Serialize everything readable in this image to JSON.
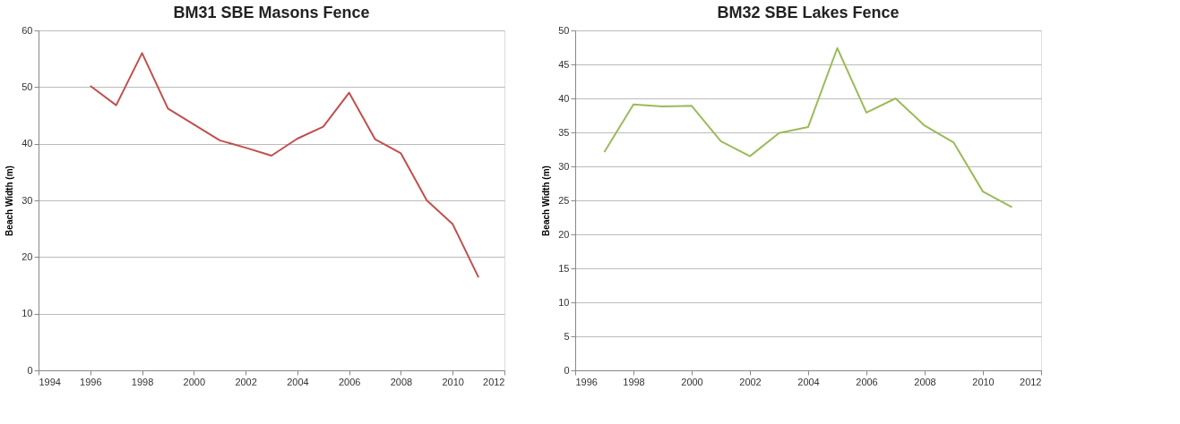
{
  "chart_data": [
    {
      "type": "line",
      "title": "BM31 SBE Masons Fence",
      "ylabel": "Beach Width (m)",
      "x": [
        1996,
        1997,
        1998,
        1999,
        2000,
        2001,
        2002,
        2003,
        2004,
        2005,
        2006,
        2007,
        2008,
        2009,
        2010,
        2011
      ],
      "series": [
        {
          "color": "#c0504d",
          "values": [
            50.2,
            46.8,
            56,
            46.2,
            43.4,
            40.6,
            39.3,
            37.9,
            40.9,
            43,
            49,
            40.8,
            38.3,
            30,
            25.8,
            16.4
          ]
        }
      ],
      "xlim": [
        1994,
        2012
      ],
      "xticks": [
        1994,
        1996,
        1998,
        2000,
        2002,
        2004,
        2006,
        2008,
        2010,
        2012
      ],
      "ylim": [
        0,
        60
      ],
      "yticks": [
        0,
        10,
        20,
        30,
        40,
        50,
        60
      ],
      "grid": "y",
      "legend": false,
      "marker": "none",
      "line_style": "solid"
    },
    {
      "type": "line",
      "title": "BM32 SBE Lakes Fence",
      "ylabel": "Beach Width (m)",
      "x": [
        1997,
        1998,
        1999,
        2000,
        2001,
        2002,
        2003,
        2004,
        2005,
        2006,
        2007,
        2008,
        2009,
        2010,
        2011
      ],
      "series": [
        {
          "color": "#9bbb59",
          "values": [
            32.1,
            39.1,
            38.8,
            38.9,
            33.7,
            31.5,
            34.9,
            35.8,
            47.4,
            37.9,
            40,
            36,
            33.5,
            26.3,
            24
          ]
        }
      ],
      "xlim": [
        1996,
        2012
      ],
      "xticks": [
        1996,
        1998,
        2000,
        2002,
        2004,
        2006,
        2008,
        2010,
        2012
      ],
      "ylim": [
        0,
        50
      ],
      "yticks": [
        0,
        5,
        10,
        15,
        20,
        25,
        30,
        35,
        40,
        45,
        50
      ],
      "grid": "y",
      "legend": false,
      "marker": "none",
      "line_style": "solid"
    }
  ]
}
